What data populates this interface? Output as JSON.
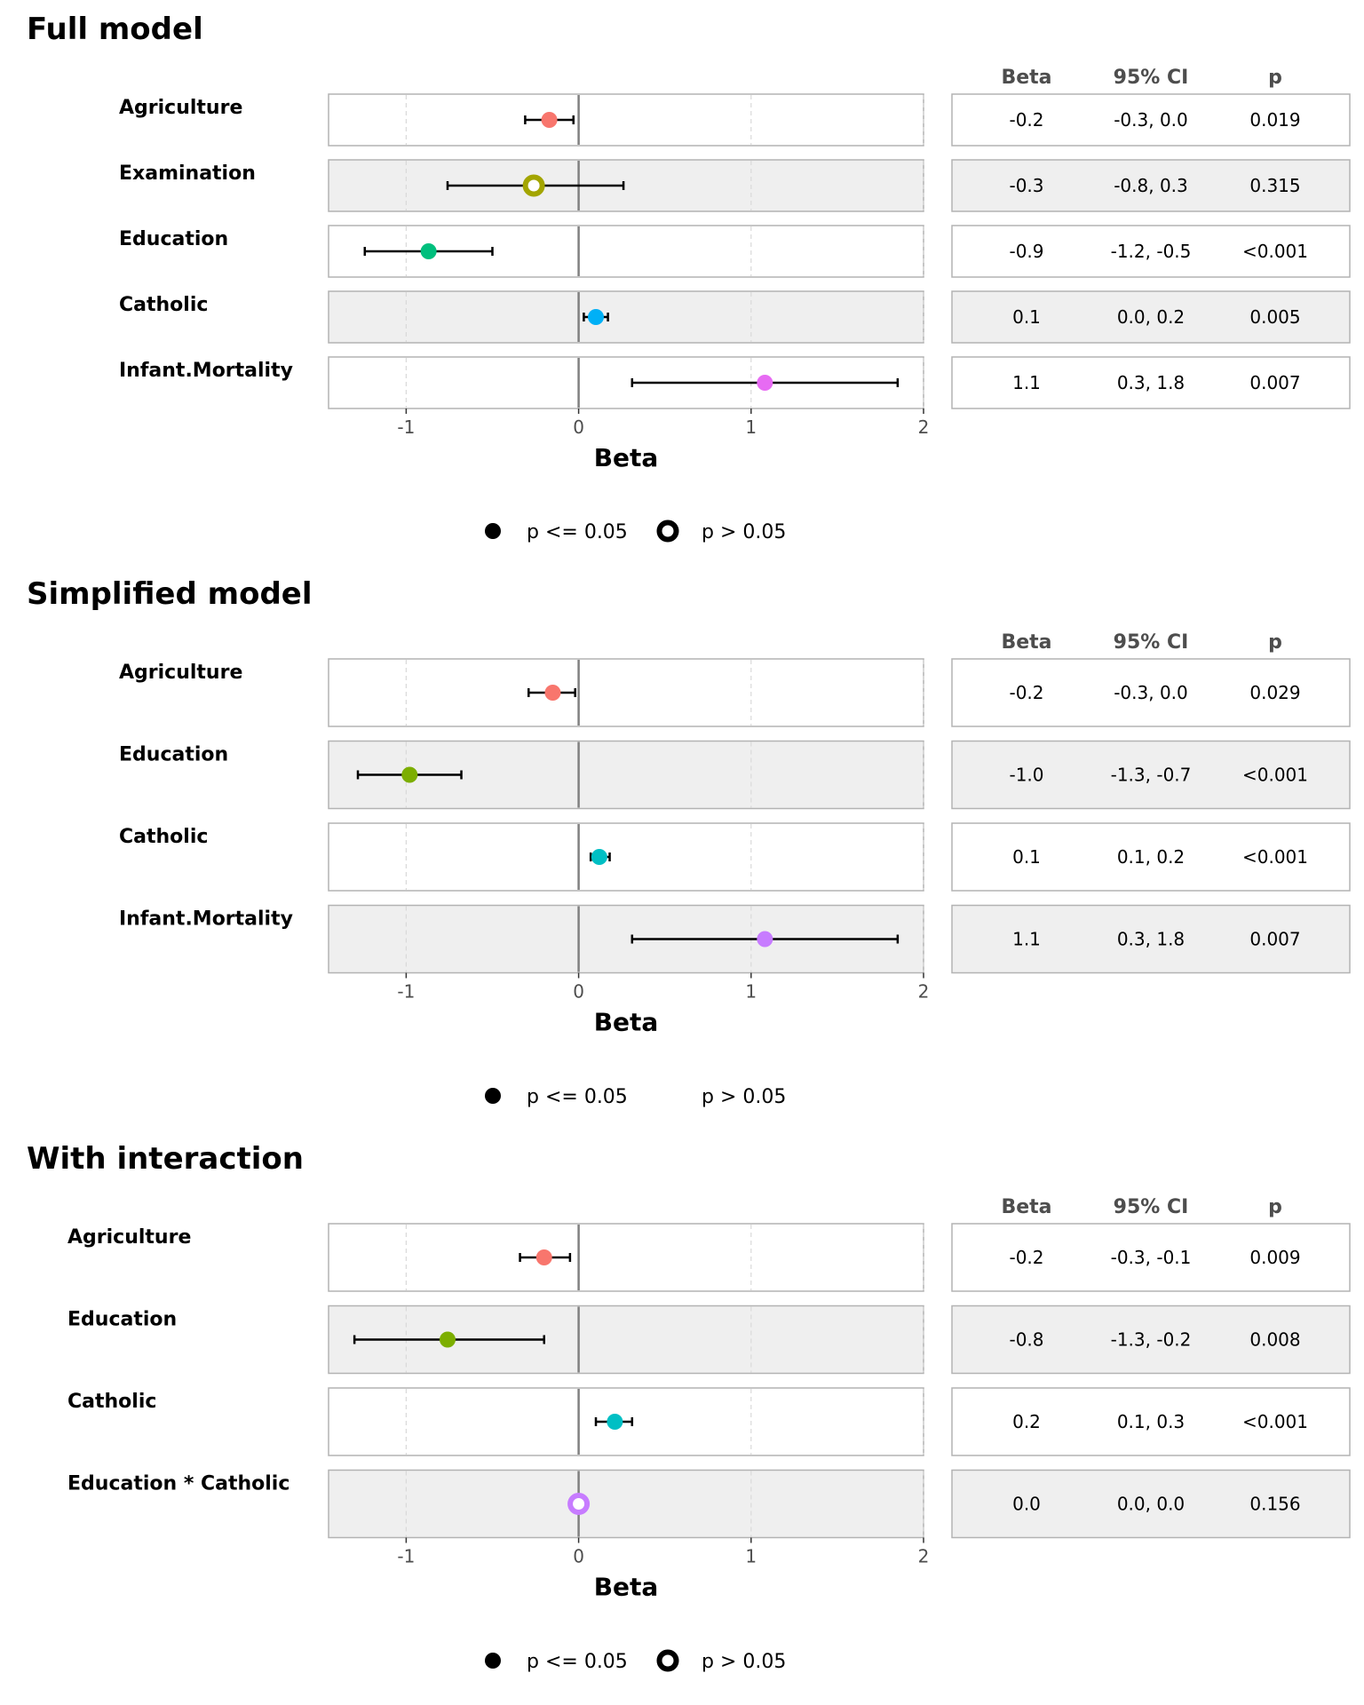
{
  "legend": {
    "significant_label": "p <= 0.05",
    "nonsignificant_label": "p > 0.05"
  },
  "chart_data": [
    {
      "type": "forest",
      "title": "Full model",
      "xlabel": "Beta",
      "xlim": [
        -1.45,
        2.0
      ],
      "xticks": [
        -1,
        0,
        1,
        2
      ],
      "xtick_labels": [
        "-1",
        "0",
        "1",
        "2"
      ],
      "table_headers": [
        "Beta",
        "95% CI",
        "p"
      ],
      "rows": [
        {
          "label": "Agriculture",
          "beta": -0.17,
          "ci_low": -0.31,
          "ci_high": -0.03,
          "sig": true,
          "color": "#F8766D",
          "beta_text": "-0.2",
          "ci_text": "-0.3, 0.0",
          "p_text": "0.019"
        },
        {
          "label": "Examination",
          "beta": -0.26,
          "ci_low": -0.76,
          "ci_high": 0.26,
          "sig": false,
          "color": "#A3A500",
          "beta_text": "-0.3",
          "ci_text": "-0.8, 0.3",
          "p_text": "0.315"
        },
        {
          "label": "Education",
          "beta": -0.87,
          "ci_low": -1.24,
          "ci_high": -0.5,
          "sig": true,
          "color": "#00BF7D",
          "beta_text": "-0.9",
          "ci_text": "-1.2, -0.5",
          "p_text": "<0.001"
        },
        {
          "label": "Catholic",
          "beta": 0.1,
          "ci_low": 0.03,
          "ci_high": 0.17,
          "sig": true,
          "color": "#00B0F6",
          "beta_text": "0.1",
          "ci_text": "0.0, 0.2",
          "p_text": "0.005"
        },
        {
          "label": "Infant.Mortality",
          "beta": 1.08,
          "ci_low": 0.31,
          "ci_high": 1.85,
          "sig": true,
          "color": "#E76BF3",
          "beta_text": "1.1",
          "ci_text": "0.3, 1.8",
          "p_text": "0.007"
        }
      ]
    },
    {
      "type": "forest",
      "title": "Simplified model",
      "xlabel": "Beta",
      "xlim": [
        -1.45,
        2.0
      ],
      "xticks": [
        -1,
        0,
        1,
        2
      ],
      "xtick_labels": [
        "-1",
        "0",
        "1",
        "2"
      ],
      "table_headers": [
        "Beta",
        "95% CI",
        "p"
      ],
      "rows": [
        {
          "label": "Agriculture",
          "beta": -0.15,
          "ci_low": -0.29,
          "ci_high": -0.02,
          "sig": true,
          "color": "#F8766D",
          "beta_text": "-0.2",
          "ci_text": "-0.3, 0.0",
          "p_text": "0.029"
        },
        {
          "label": "Education",
          "beta": -0.98,
          "ci_low": -1.28,
          "ci_high": -0.68,
          "sig": true,
          "color": "#7CAE00",
          "beta_text": "-1.0",
          "ci_text": "-1.3, -0.7",
          "p_text": "<0.001"
        },
        {
          "label": "Catholic",
          "beta": 0.12,
          "ci_low": 0.07,
          "ci_high": 0.18,
          "sig": true,
          "color": "#00BFC4",
          "beta_text": "0.1",
          "ci_text": "0.1, 0.2",
          "p_text": "<0.001"
        },
        {
          "label": "Infant.Mortality",
          "beta": 1.08,
          "ci_low": 0.31,
          "ci_high": 1.85,
          "sig": true,
          "color": "#C77CFF",
          "beta_text": "1.1",
          "ci_text": "0.3, 1.8",
          "p_text": "0.007"
        }
      ]
    },
    {
      "type": "forest",
      "title": "With interaction",
      "xlabel": "Beta",
      "xlim": [
        -1.45,
        2.0
      ],
      "xticks": [
        -1,
        0,
        1,
        2
      ],
      "xtick_labels": [
        "-1",
        "0",
        "1",
        "2"
      ],
      "table_headers": [
        "Beta",
        "95% CI",
        "p"
      ],
      "rows": [
        {
          "label": "Agriculture",
          "beta": -0.2,
          "ci_low": -0.34,
          "ci_high": -0.05,
          "sig": true,
          "color": "#F8766D",
          "beta_text": "-0.2",
          "ci_text": "-0.3, -0.1",
          "p_text": "0.009"
        },
        {
          "label": "Education",
          "beta": -0.76,
          "ci_low": -1.3,
          "ci_high": -0.2,
          "sig": true,
          "color": "#7CAE00",
          "beta_text": "-0.8",
          "ci_text": "-1.3, -0.2",
          "p_text": "0.008"
        },
        {
          "label": "Catholic",
          "beta": 0.21,
          "ci_low": 0.1,
          "ci_high": 0.31,
          "sig": true,
          "color": "#00BFC4",
          "beta_text": "0.2",
          "ci_text": "0.1, 0.3",
          "p_text": "<0.001"
        },
        {
          "label": "Education * Catholic",
          "beta": 0.0,
          "ci_low": 0.0,
          "ci_high": 0.0,
          "sig": false,
          "color": "#C77CFF",
          "beta_text": "0.0",
          "ci_text": "0.0, 0.0",
          "p_text": "0.156"
        }
      ]
    }
  ]
}
